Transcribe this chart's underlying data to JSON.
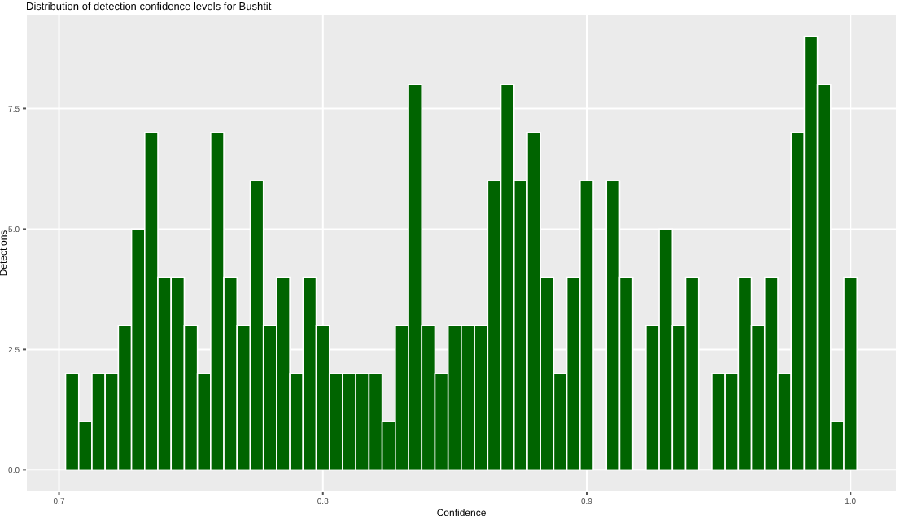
{
  "chart_data": {
    "type": "histogram",
    "title": "Distribution of detection confidence levels for Bushtit",
    "xlabel": "Confidence",
    "ylabel": "Detections",
    "color": "#006400",
    "bins": [
      0.7025,
      0.7075,
      0.7125,
      0.7175,
      0.7225,
      0.7275,
      0.7325,
      0.7375,
      0.7425,
      0.7475,
      0.7525,
      0.7575,
      0.7625,
      0.7675,
      0.7725,
      0.7775,
      0.7825,
      0.7875,
      0.7925,
      0.7975,
      0.8025,
      0.8075,
      0.8125,
      0.8175,
      0.8225,
      0.8275,
      0.8325,
      0.8375,
      0.8425,
      0.8475,
      0.8525,
      0.8575,
      0.8625,
      0.8675,
      0.8725,
      0.8775,
      0.8825,
      0.8875,
      0.8925,
      0.8975,
      0.9025,
      0.9075,
      0.9125,
      0.9175,
      0.9225,
      0.9275,
      0.9325,
      0.9375,
      0.9425,
      0.9475,
      0.9525,
      0.9575,
      0.9625,
      0.9675,
      0.9725,
      0.9775,
      0.9825,
      0.9875,
      0.9925,
      0.9975,
      1.0025
    ],
    "values": [
      2,
      1,
      2,
      2,
      3,
      5,
      7,
      4,
      4,
      3,
      2,
      7,
      4,
      3,
      6,
      3,
      4,
      2,
      4,
      3,
      2,
      2,
      2,
      2,
      1,
      3,
      8,
      3,
      2,
      3,
      3,
      3,
      6,
      8,
      6,
      7,
      4,
      2,
      4,
      6,
      0,
      6,
      4,
      0,
      3,
      5,
      3,
      4,
      0,
      2,
      2,
      4,
      3,
      4,
      2,
      7,
      9,
      8,
      1,
      4
    ],
    "xlim": [
      0.6875,
      1.0175
    ],
    "ylim": [
      -0.45,
      9.45
    ],
    "xticks": [
      {
        "value": 0.7,
        "label": "0.7"
      },
      {
        "value": 0.8,
        "label": "0.8"
      },
      {
        "value": 0.9,
        "label": "0.9"
      },
      {
        "value": 1.0,
        "label": "1.0"
      }
    ],
    "yticks": [
      {
        "value": 0,
        "label": "0.0"
      },
      {
        "value": 2.5,
        "label": "2.5"
      },
      {
        "value": 5,
        "label": "5.0"
      },
      {
        "value": 7.5,
        "label": "7.5"
      }
    ],
    "grid": true
  }
}
